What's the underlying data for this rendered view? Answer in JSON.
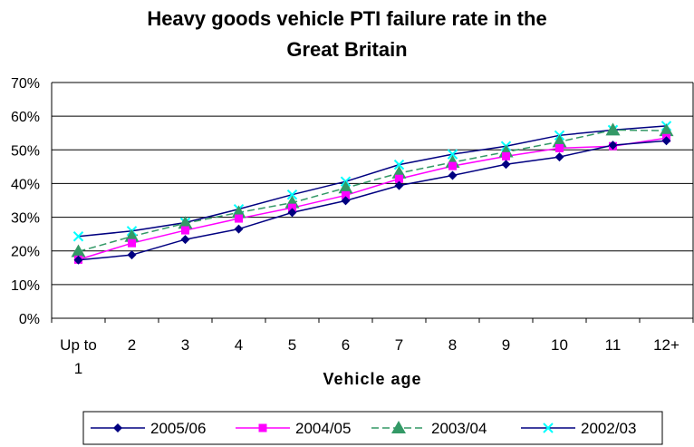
{
  "chart_data": {
    "type": "line",
    "title_line1": "Heavy goods vehicle PTI failure rate in the",
    "title_line2": "Great Britain",
    "xlabel": "Vehicle age",
    "ylabel": "",
    "categories": [
      [
        "Up to",
        "1"
      ],
      [
        "2"
      ],
      [
        "3"
      ],
      [
        "4"
      ],
      [
        "5"
      ],
      [
        "6"
      ],
      [
        "7"
      ],
      [
        "8"
      ],
      [
        "9"
      ],
      [
        "10"
      ],
      [
        "11"
      ],
      [
        "12+"
      ]
    ],
    "ylim": [
      0,
      0.7
    ],
    "yticks": [
      "0%",
      "10%",
      "20%",
      "30%",
      "40%",
      "50%",
      "60%",
      "70%"
    ],
    "grid": "horizontal",
    "legend_position": "bottom",
    "series": [
      {
        "name": "2005/06",
        "color": "#000080",
        "marker": "diamond",
        "dash": "solid",
        "values": [
          0.173,
          0.188,
          0.234,
          0.265,
          0.314,
          0.349,
          0.394,
          0.424,
          0.457,
          0.479,
          0.514,
          0.527
        ]
      },
      {
        "name": "2004/05",
        "color": "#ff00ff",
        "marker": "square",
        "dash": "solid",
        "values": [
          0.174,
          0.223,
          0.261,
          0.296,
          0.328,
          0.365,
          0.414,
          0.452,
          0.481,
          0.505,
          0.511,
          0.535
        ]
      },
      {
        "name": "2003/04",
        "color": "#339966",
        "marker": "triangle",
        "dash": "dashed",
        "values": [
          0.198,
          0.243,
          0.282,
          0.314,
          0.343,
          0.387,
          0.431,
          0.463,
          0.494,
          0.524,
          0.559,
          0.557
        ]
      },
      {
        "name": "2002/03",
        "color": "#00ffff",
        "line_color": "#000080",
        "marker": "x",
        "dash": "solid",
        "values": [
          0.243,
          0.259,
          0.284,
          0.324,
          0.367,
          0.406,
          0.456,
          0.487,
          0.511,
          0.543,
          0.559,
          0.571
        ]
      }
    ]
  }
}
